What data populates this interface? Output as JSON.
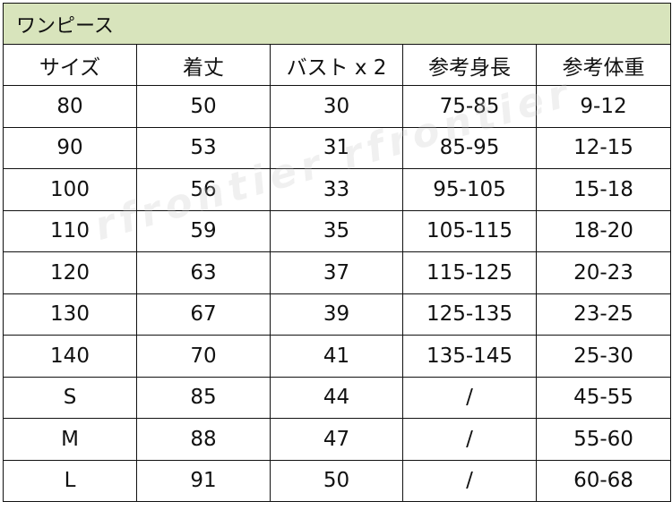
{
  "title": "ワンピース",
  "headers": [
    "サイズ",
    "着丈",
    "バスト x 2",
    "参考身長",
    "参考体重"
  ],
  "rows": [
    [
      "80",
      "50",
      "30",
      "75-85",
      "9-12"
    ],
    [
      "90",
      "53",
      "31",
      "85-95",
      "12-15"
    ],
    [
      "100",
      "56",
      "33",
      "95-105",
      "15-18"
    ],
    [
      "110",
      "59",
      "35",
      "105-115",
      "18-20"
    ],
    [
      "120",
      "63",
      "37",
      "115-125",
      "20-23"
    ],
    [
      "130",
      "67",
      "39",
      "125-135",
      "23-25"
    ],
    [
      "140",
      "70",
      "41",
      "135-145",
      "25-30"
    ],
    [
      "S",
      "85",
      "44",
      "/",
      "45-55"
    ],
    [
      "M",
      "88",
      "47",
      "/",
      "55-60"
    ],
    [
      "L",
      "91",
      "50",
      "/",
      "60-68"
    ]
  ],
  "watermark": "rfrontier rfrontier",
  "colors": {
    "title_bg": "#d8e4bc",
    "border": "#111111"
  }
}
